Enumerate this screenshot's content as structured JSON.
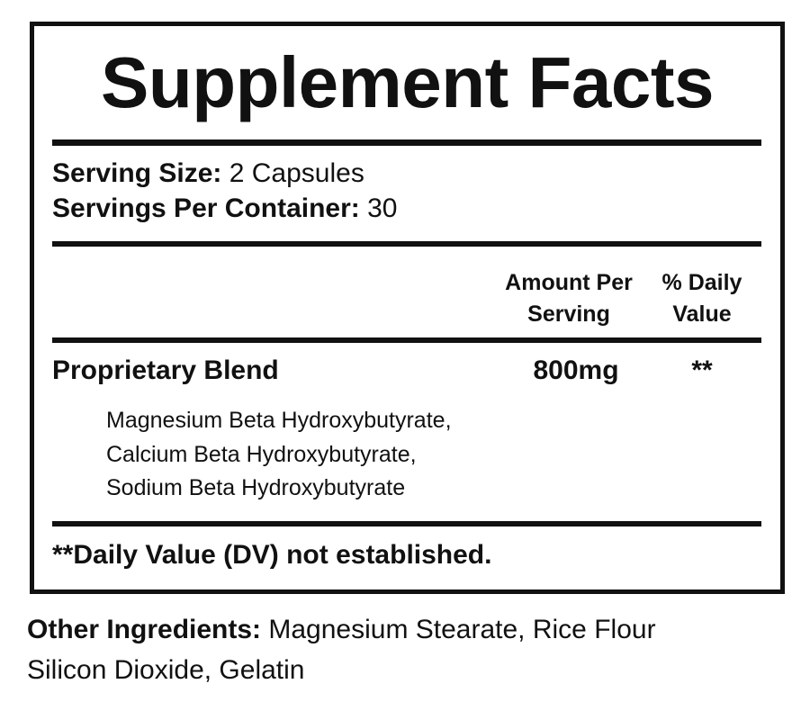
{
  "title": "Supplement Facts",
  "serving": [
    {
      "label": "Serving Size:",
      "value": "2 Capsules"
    },
    {
      "label": "Servings Per Container:",
      "value": "30"
    }
  ],
  "columns": {
    "amount": [
      "Amount Per",
      "Serving"
    ],
    "daily": [
      "% Daily",
      "Value"
    ]
  },
  "blend": {
    "name": "Proprietary Blend",
    "amount": "800mg",
    "daily": "**",
    "ingredients": [
      "Magnesium Beta Hydroxybutyrate,",
      "Calcium Beta Hydroxybutyrate,",
      "Sodium Beta Hydroxybutyrate"
    ]
  },
  "footnote": "**Daily Value (DV) not established.",
  "other": {
    "label": "Other Ingredients:",
    "lines": [
      "Magnesium Stearate, Rice Flour",
      "Silicon Dioxide, Gelatin"
    ]
  }
}
